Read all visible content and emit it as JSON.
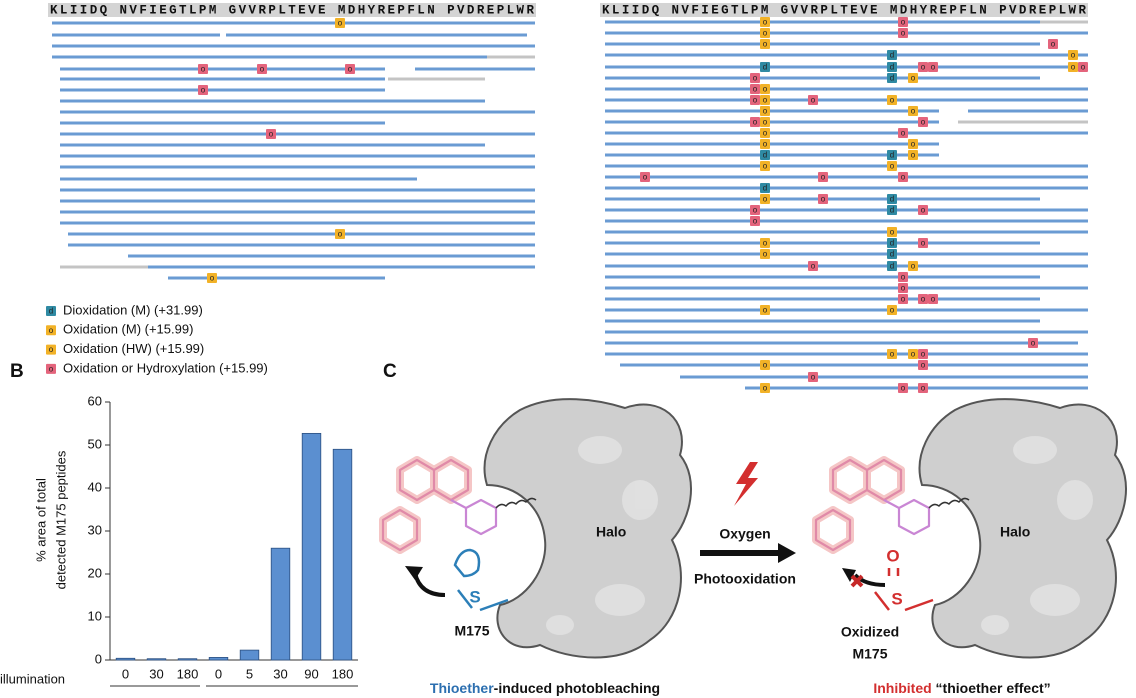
{
  "panel_a": {
    "sequence": "KLIIDQ NVFIEGTLPM GVVRPLTEVE MDHYREPFLN PVDREPLWR",
    "legend": [
      {
        "symbol": "d",
        "label": "Dioxidation (M) (+31.99)",
        "color": "#2f8aa3"
      },
      {
        "symbol": "o",
        "label": "Oxidation (M) (+15.99)",
        "color": "#f2b227"
      },
      {
        "symbol": "o",
        "label": "Oxidation (HW) (+15.99)",
        "color": "#f2b227"
      },
      {
        "symbol": "o",
        "label": "Oxidation or Hydroxylation (+15.99)",
        "color": "#e4647c"
      }
    ]
  },
  "chart_data": {
    "type": "bar",
    "panel_label": "B",
    "ylabel": [
      "% area of total",
      "detected M175 peptides"
    ],
    "row_label": "illumination",
    "categories": [
      "0",
      "30",
      "180",
      "0",
      "5",
      "30",
      "90",
      "180"
    ],
    "values": [
      0.4,
      0.3,
      0.3,
      0.6,
      2.3,
      26,
      52.7,
      49
    ],
    "color": "#5b8fd0",
    "ylim": [
      0,
      60
    ],
    "yticks": [
      0,
      10,
      20,
      30,
      40,
      50,
      60
    ]
  },
  "panel_c": {
    "panel_label": "C",
    "protein": "Halo",
    "oxygen": "Oxygen",
    "process": "Photooxidation",
    "residue": "M175",
    "oxidized_residue": [
      "Oxidized",
      "M175"
    ],
    "sulfur": "S",
    "oxygen_atom": "O",
    "caption_left": {
      "highlight": "Thioether",
      "rest": "-induced photobleaching"
    },
    "caption_right": {
      "highlight": "Inhibited",
      "rest": " “thioether effect”"
    }
  }
}
